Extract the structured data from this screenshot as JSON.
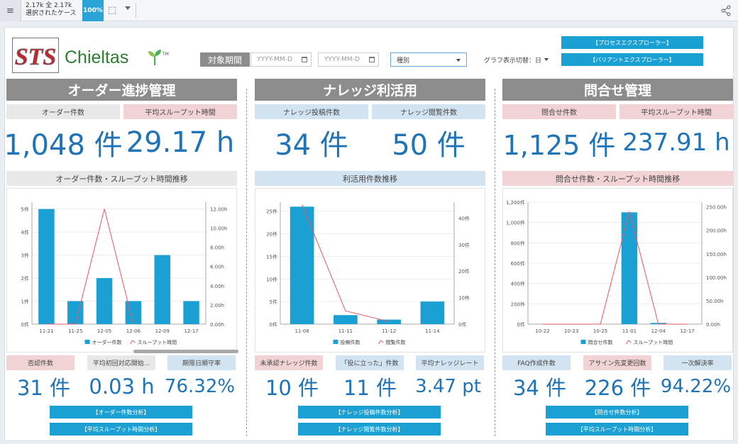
{
  "topbar": {
    "menu_icon": "hamburger-icon",
    "count_line1": "2.17k 全 2.17k",
    "count_line2": "選択されたケース",
    "zoom": "100%",
    "share_icon": "share-icon"
  },
  "logo": {
    "mark": "STS",
    "name": "Chieltas",
    "tm": "TM"
  },
  "filters": {
    "period_label": "対象期間",
    "date_from_placeholder": "YYYY-MM-D",
    "date_to_placeholder": "YYYY-MM-D",
    "category_value": "種別",
    "graph_toggle": "グラフ表示切替：日"
  },
  "explorer_buttons": {
    "process": "【プロセスエクスプローラー】",
    "variant": "【バリアントエクスプローラー】"
  },
  "colors": {
    "bar": "#1aa0d3",
    "line": "#e55a62",
    "value_text": "#1f73b7",
    "header_gray": "#8c8c8c",
    "label_pink": "#f2d3d5",
    "label_blue": "#d2e3f1",
    "label_gray": "#e8e8e8"
  },
  "sections": [
    {
      "title": "オーダー進捗管理",
      "kpis": [
        {
          "label": "オーダー件数",
          "value": "1,048 件"
        },
        {
          "label": "平均スループット時間",
          "value": "29.17 h"
        }
      ],
      "chart_title": "オーダー件数・スループット時間推移",
      "bottom": [
        {
          "label": "否認件数",
          "value": "31 件"
        },
        {
          "label": "平均初回対応開始...",
          "value": "0.03 h"
        },
        {
          "label": "期限日順守率",
          "value": "76.32%"
        }
      ],
      "buttons": [
        "【オーダー件数分析】",
        "【平均スループット時間分析】"
      ]
    },
    {
      "title": "ナレッジ利活用",
      "kpis": [
        {
          "label": "ナレッジ投稿件数",
          "value": "34 件"
        },
        {
          "label": "ナレッジ閲覧件数",
          "value": "50 件"
        }
      ],
      "chart_title": "利活用件数推移",
      "bottom": [
        {
          "label": "未承認ナレッジ件数",
          "value": "10 件"
        },
        {
          "label": "「役に立った」件数",
          "value": "11 件"
        },
        {
          "label": "平均ナレッジレート",
          "value": "3.47 pt"
        }
      ],
      "buttons": [
        "【ナレッジ投稿件数分析】",
        "【ナレッジ閲覧件数分析】"
      ]
    },
    {
      "title": "問合せ管理",
      "kpis": [
        {
          "label": "問合せ件数",
          "value": "1,125 件"
        },
        {
          "label": "平均スループット時間",
          "value": "237.91 h"
        }
      ],
      "chart_title": "問合せ件数・スループット時間推移",
      "bottom": [
        {
          "label": "FAQ作成件数",
          "value": "34 件"
        },
        {
          "label": "アサイン先変更回数",
          "value": "226 件"
        },
        {
          "label": "一次解決率",
          "value": "94.22%"
        }
      ],
      "buttons": [
        "【問合せ件数分析】",
        "【平均スループット時間分析】"
      ]
    }
  ],
  "chart_data": [
    {
      "type": "bar",
      "categories": [
        "11-21",
        "11-25",
        "12-05",
        "12-06",
        "12-09",
        "12-17"
      ],
      "series": [
        {
          "name": "オーダー件数",
          "type": "bar",
          "values": [
            5,
            1,
            2,
            1,
            3,
            1
          ]
        },
        {
          "name": "スループット時間",
          "type": "line",
          "axis": "right",
          "values": [
            0,
            0,
            12,
            0,
            null,
            null
          ]
        }
      ],
      "yticks": [
        "0件",
        "1件",
        "2件",
        "3件",
        "4件",
        "5件"
      ],
      "y2ticks": [
        "0.00h",
        "2.00h",
        "4.00h",
        "6.00h",
        "8.00h",
        "10.00h",
        "12.00h"
      ],
      "ylim": [
        0,
        5.3
      ],
      "y2lim": [
        0,
        12.7
      ],
      "legend": "bottom"
    },
    {
      "type": "bar",
      "categories": [
        "11-08",
        "11-11",
        "11-12",
        "11-14"
      ],
      "series": [
        {
          "name": "投稿件数",
          "type": "bar",
          "values": [
            26,
            2,
            1,
            5
          ]
        },
        {
          "name": "閲覧件数",
          "type": "line",
          "axis": "right",
          "values": [
            45,
            5,
            1,
            null
          ]
        }
      ],
      "yticks": [
        "0件",
        "5件",
        "10件",
        "15件",
        "20件",
        "25件"
      ],
      "y2ticks": [
        "0件",
        "10件",
        "20件",
        "30件",
        "40件"
      ],
      "ylim": [
        0,
        27
      ],
      "y2lim": [
        0,
        46
      ],
      "legend": "bottom"
    },
    {
      "type": "bar",
      "categories": [
        "10-22",
        "10-23",
        "10-25",
        "11-01",
        "12-04",
        "12-17"
      ],
      "series": [
        {
          "name": "問合せ件数",
          "type": "bar",
          "values": [
            0,
            0,
            0,
            1100,
            12,
            0
          ]
        },
        {
          "name": "スループット時間",
          "type": "line",
          "axis": "right",
          "values": [
            0,
            0,
            0,
            240,
            0,
            0
          ]
        }
      ],
      "yticks": [
        "0件",
        "200件",
        "400件",
        "600件",
        "800件",
        "1,000件",
        "1,200件"
      ],
      "y2ticks": [
        "0.00h",
        "50.00h",
        "100.00h",
        "150.00h",
        "200.00h",
        "250.00h"
      ],
      "ylim": [
        0,
        1200
      ],
      "y2lim": [
        0,
        260
      ],
      "legend": "bottom"
    }
  ]
}
